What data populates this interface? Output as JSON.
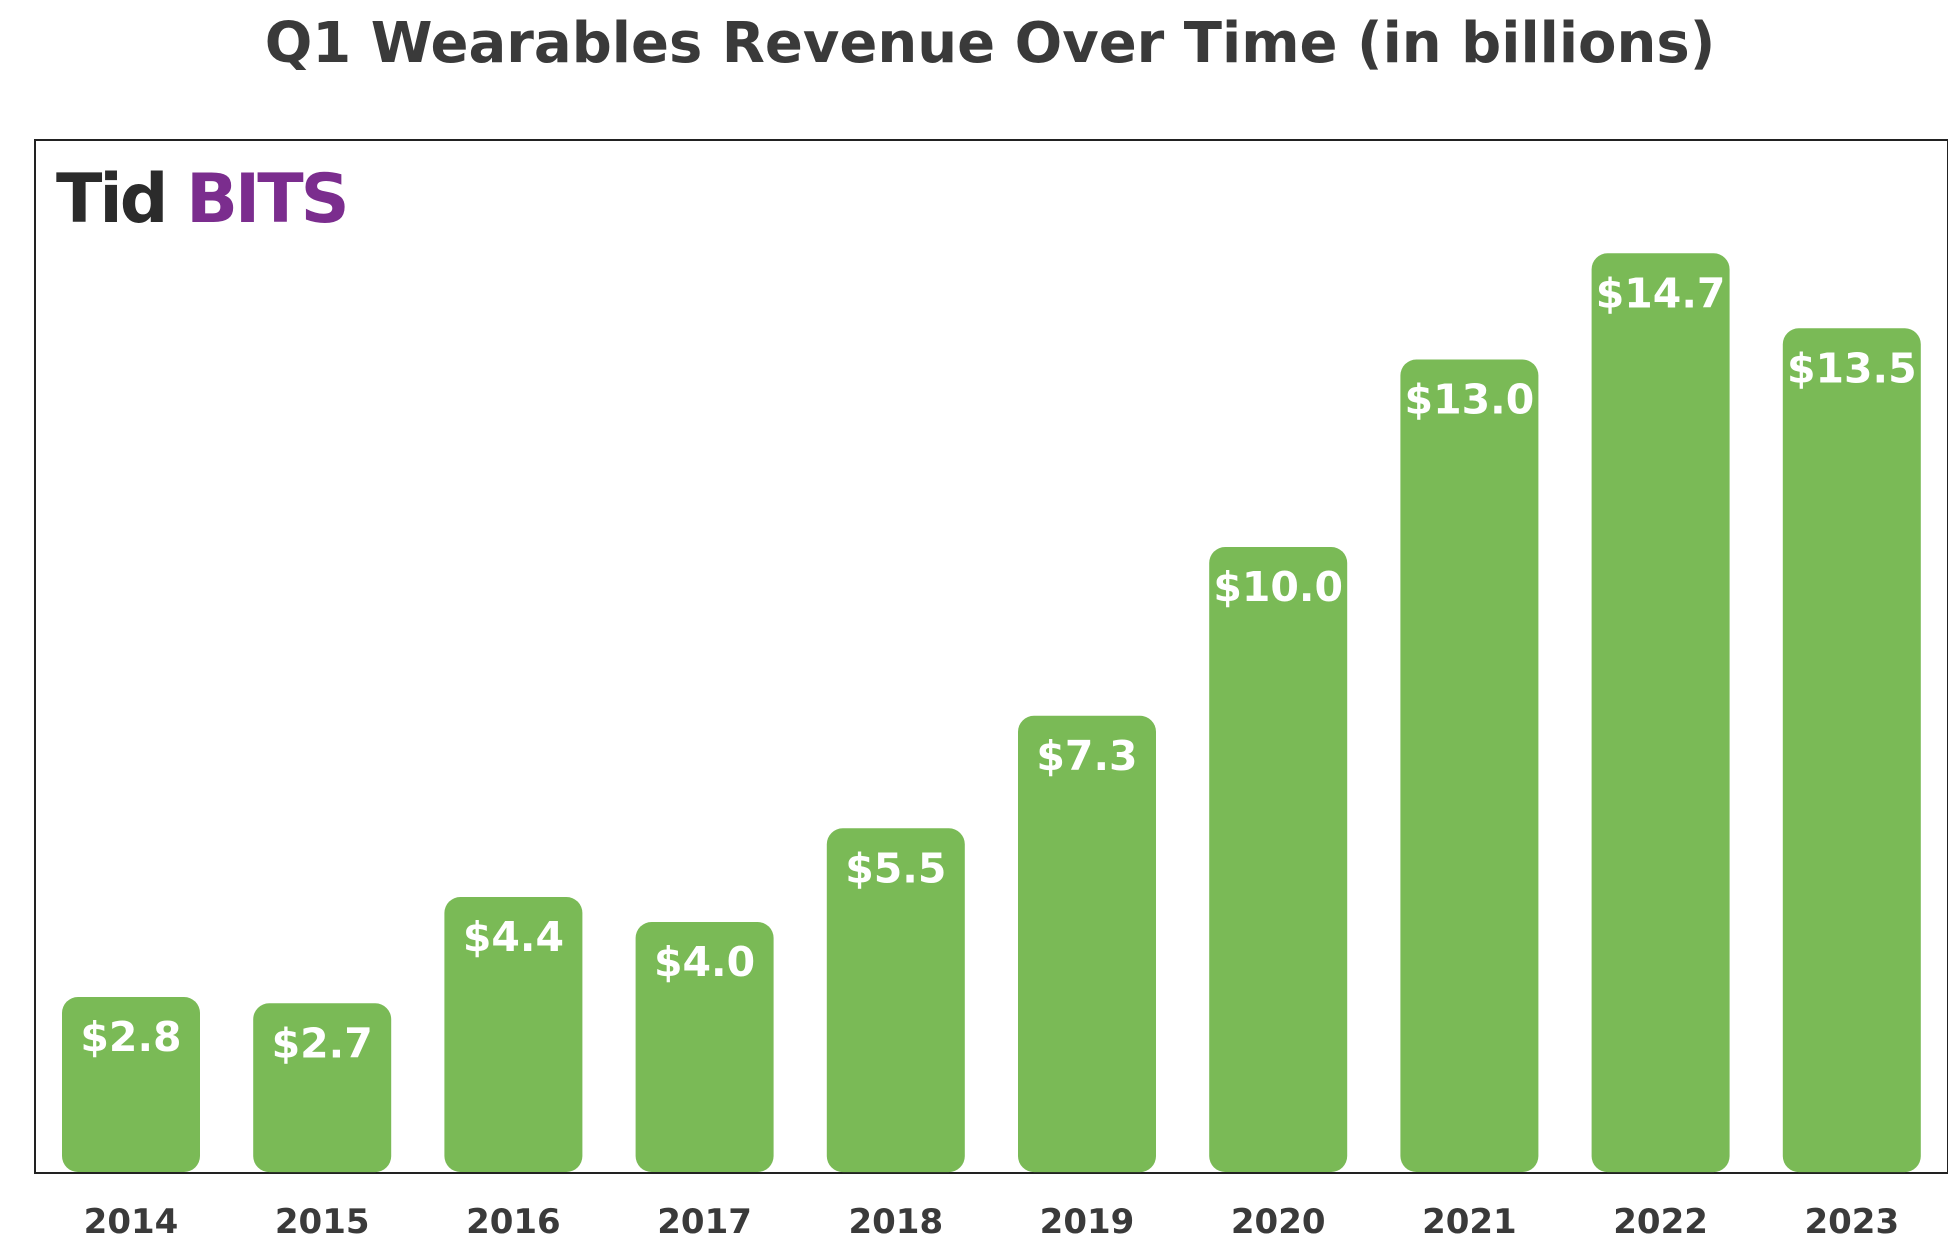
{
  "chart_data": {
    "type": "bar",
    "title": "Q1 Wearables Revenue Over Time (in billions)",
    "xlabel": "",
    "ylabel": "",
    "categories": [
      "2014",
      "2015",
      "2016",
      "2017",
      "2018",
      "2019",
      "2020",
      "2021",
      "2022",
      "2023"
    ],
    "values": [
      2.8,
      2.7,
      4.4,
      4.0,
      5.5,
      7.3,
      10.0,
      13.0,
      14.7,
      13.5
    ],
    "value_labels": [
      "$2.8",
      "$2.7",
      "$4.4",
      "$4.0",
      "$5.5",
      "$7.3",
      "$10.0",
      "$13.0",
      "$14.7",
      "$13.5"
    ],
    "ylim": [
      0,
      16
    ],
    "grid": false,
    "legend": "none",
    "colors": {
      "bar": "#7aba56",
      "bar_label": "#ffffff",
      "title": "#3a3a3a",
      "tick_label": "#3a3a3a",
      "frame": "#222222"
    }
  },
  "logo": {
    "part1": "Tid",
    "part2": "BITS",
    "color1": "#2b2b2b",
    "color2": "#7b2d8e"
  }
}
